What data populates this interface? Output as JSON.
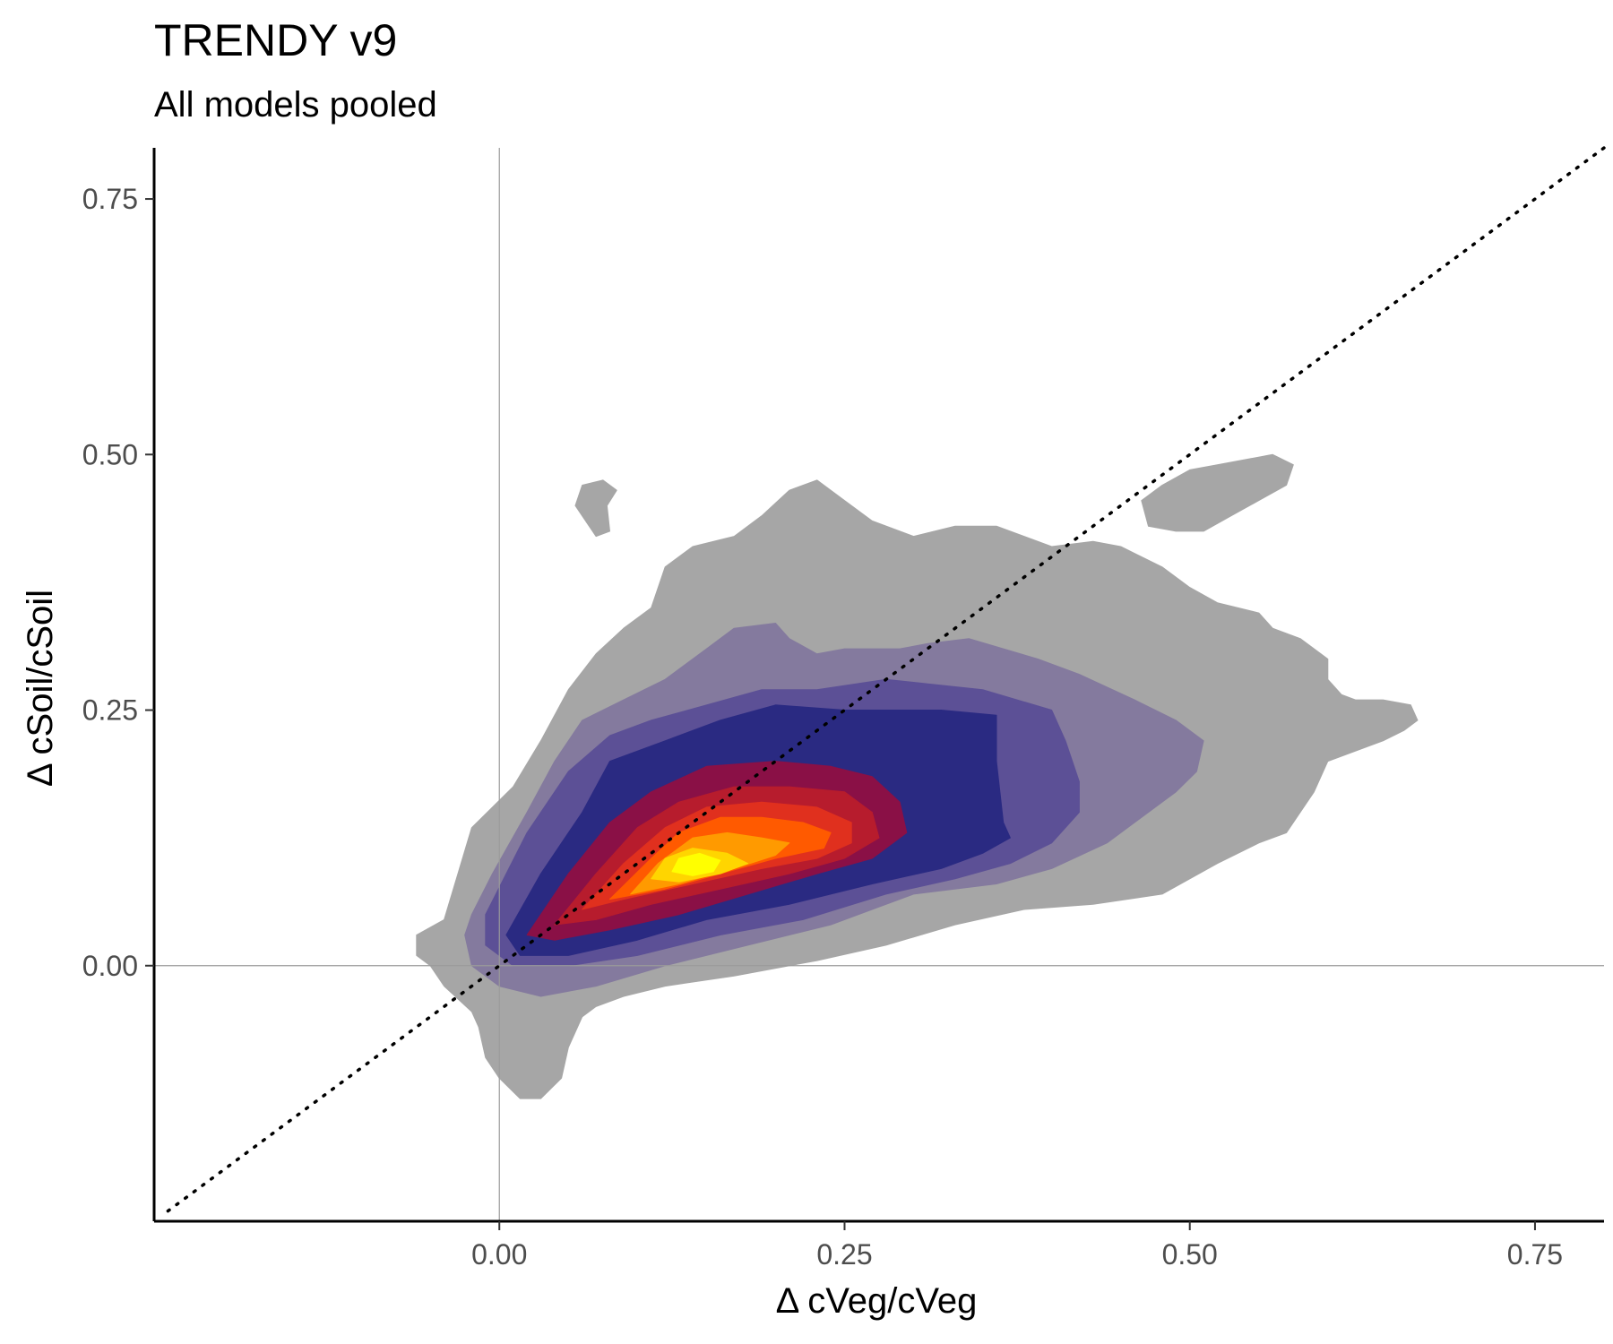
{
  "chart_data": {
    "type": "density-contour",
    "title": "TRENDY v9",
    "subtitle": "All models pooled",
    "xlabel": "Δ cVeg/cVeg",
    "ylabel": "Δ cSoil/cSoil",
    "xlim": [
      -0.25,
      0.8
    ],
    "ylim": [
      -0.25,
      0.8
    ],
    "x_ticks": [
      0.0,
      0.25,
      0.5,
      0.75
    ],
    "x_tick_labels": [
      "0.00",
      "0.25",
      "0.50",
      "0.75"
    ],
    "y_ticks": [
      0.0,
      0.25,
      0.5,
      0.75
    ],
    "y_tick_labels": [
      "0.00",
      "0.25",
      "0.50",
      "0.75"
    ],
    "reference_lines": {
      "vertical_x": 0,
      "horizontal_y": 0,
      "diagonal": "1:1",
      "diagonal_style": "dotted"
    },
    "grid": false,
    "legend": "none",
    "level_colors": [
      "#a6a6a6",
      "#847a9e",
      "#5c5096",
      "#2a2a82",
      "#8a1046",
      "#b71c2d",
      "#e0301e",
      "#ff5a00",
      "#ff9a00",
      "#ffd500",
      "#ffff00"
    ],
    "levels": [
      {
        "level": 1,
        "polygons": [
          [
            [
              -0.06,
              0.03
            ],
            [
              -0.04,
              0.045
            ],
            [
              -0.03,
              0.09
            ],
            [
              -0.02,
              0.135
            ],
            [
              0.01,
              0.175
            ],
            [
              0.03,
              0.22
            ],
            [
              0.05,
              0.27
            ],
            [
              0.07,
              0.305
            ],
            [
              0.09,
              0.33
            ],
            [
              0.11,
              0.35
            ],
            [
              0.12,
              0.39
            ],
            [
              0.14,
              0.41
            ],
            [
              0.17,
              0.42
            ],
            [
              0.19,
              0.44
            ],
            [
              0.21,
              0.465
            ],
            [
              0.23,
              0.475
            ],
            [
              0.25,
              0.455
            ],
            [
              0.27,
              0.435
            ],
            [
              0.3,
              0.42
            ],
            [
              0.33,
              0.43
            ],
            [
              0.36,
              0.43
            ],
            [
              0.4,
              0.41
            ],
            [
              0.43,
              0.415
            ],
            [
              0.45,
              0.41
            ],
            [
              0.48,
              0.39
            ],
            [
              0.5,
              0.37
            ],
            [
              0.52,
              0.355
            ],
            [
              0.55,
              0.345
            ],
            [
              0.56,
              0.33
            ],
            [
              0.58,
              0.32
            ],
            [
              0.6,
              0.3
            ],
            [
              0.6,
              0.28
            ],
            [
              0.61,
              0.265
            ],
            [
              0.62,
              0.26
            ],
            [
              0.64,
              0.26
            ],
            [
              0.66,
              0.255
            ],
            [
              0.665,
              0.24
            ],
            [
              0.655,
              0.23
            ],
            [
              0.64,
              0.22
            ],
            [
              0.6,
              0.2
            ],
            [
              0.59,
              0.17
            ],
            [
              0.57,
              0.13
            ],
            [
              0.55,
              0.12
            ],
            [
              0.52,
              0.1
            ],
            [
              0.5,
              0.085
            ],
            [
              0.48,
              0.07
            ],
            [
              0.43,
              0.06
            ],
            [
              0.38,
              0.055
            ],
            [
              0.33,
              0.04
            ],
            [
              0.28,
              0.02
            ],
            [
              0.23,
              0.005
            ],
            [
              0.17,
              -0.01
            ],
            [
              0.12,
              -0.02
            ],
            [
              0.09,
              -0.03
            ],
            [
              0.07,
              -0.04
            ],
            [
              0.06,
              -0.05
            ],
            [
              0.05,
              -0.08
            ],
            [
              0.045,
              -0.11
            ],
            [
              0.03,
              -0.13
            ],
            [
              0.015,
              -0.13
            ],
            [
              0.0,
              -0.11
            ],
            [
              -0.01,
              -0.09
            ],
            [
              -0.015,
              -0.06
            ],
            [
              -0.02,
              -0.045
            ],
            [
              -0.04,
              -0.02
            ],
            [
              -0.05,
              0.0
            ],
            [
              -0.06,
              0.01
            ]
          ],
          [
            [
              0.055,
              0.45
            ],
            [
              0.07,
              0.42
            ],
            [
              0.08,
              0.425
            ],
            [
              0.078,
              0.45
            ],
            [
              0.085,
              0.465
            ],
            [
              0.075,
              0.475
            ],
            [
              0.06,
              0.47
            ]
          ],
          [
            [
              0.465,
              0.455
            ],
            [
              0.48,
              0.47
            ],
            [
              0.5,
              0.485
            ],
            [
              0.52,
              0.49
            ],
            [
              0.54,
              0.495
            ],
            [
              0.56,
              0.5
            ],
            [
              0.575,
              0.49
            ],
            [
              0.57,
              0.47
            ],
            [
              0.55,
              0.455
            ],
            [
              0.53,
              0.44
            ],
            [
              0.51,
              0.425
            ],
            [
              0.49,
              0.425
            ],
            [
              0.47,
              0.43
            ]
          ]
        ]
      },
      {
        "level": 2,
        "polygons": [
          [
            [
              -0.02,
              0.05
            ],
            [
              -0.005,
              0.09
            ],
            [
              0.02,
              0.15
            ],
            [
              0.04,
              0.2
            ],
            [
              0.06,
              0.24
            ],
            [
              0.09,
              0.26
            ],
            [
              0.12,
              0.28
            ],
            [
              0.15,
              0.31
            ],
            [
              0.17,
              0.33
            ],
            [
              0.2,
              0.335
            ],
            [
              0.21,
              0.32
            ],
            [
              0.23,
              0.305
            ],
            [
              0.25,
              0.31
            ],
            [
              0.29,
              0.31
            ],
            [
              0.31,
              0.315
            ],
            [
              0.34,
              0.32
            ],
            [
              0.39,
              0.3
            ],
            [
              0.42,
              0.285
            ],
            [
              0.46,
              0.26
            ],
            [
              0.49,
              0.24
            ],
            [
              0.51,
              0.22
            ],
            [
              0.505,
              0.19
            ],
            [
              0.49,
              0.17
            ],
            [
              0.46,
              0.14
            ],
            [
              0.44,
              0.12
            ],
            [
              0.4,
              0.095
            ],
            [
              0.36,
              0.08
            ],
            [
              0.3,
              0.07
            ],
            [
              0.24,
              0.04
            ],
            [
              0.18,
              0.02
            ],
            [
              0.12,
              0.0
            ],
            [
              0.07,
              -0.02
            ],
            [
              0.03,
              -0.03
            ],
            [
              0.0,
              -0.02
            ],
            [
              -0.02,
              0.0
            ],
            [
              -0.025,
              0.03
            ]
          ]
        ]
      },
      {
        "level": 3,
        "polygons": [
          [
            [
              -0.01,
              0.05
            ],
            [
              0.02,
              0.13
            ],
            [
              0.05,
              0.19
            ],
            [
              0.08,
              0.225
            ],
            [
              0.11,
              0.24
            ],
            [
              0.15,
              0.255
            ],
            [
              0.19,
              0.27
            ],
            [
              0.23,
              0.27
            ],
            [
              0.28,
              0.28
            ],
            [
              0.35,
              0.27
            ],
            [
              0.4,
              0.25
            ],
            [
              0.41,
              0.22
            ],
            [
              0.42,
              0.18
            ],
            [
              0.42,
              0.15
            ],
            [
              0.4,
              0.12
            ],
            [
              0.37,
              0.1
            ],
            [
              0.33,
              0.085
            ],
            [
              0.28,
              0.07
            ],
            [
              0.22,
              0.045
            ],
            [
              0.16,
              0.03
            ],
            [
              0.1,
              0.01
            ],
            [
              0.05,
              0.0
            ],
            [
              0.01,
              0.0
            ],
            [
              -0.01,
              0.02
            ]
          ]
        ]
      },
      {
        "level": 4,
        "polygons": [
          [
            [
              0.005,
              0.03
            ],
            [
              0.03,
              0.09
            ],
            [
              0.06,
              0.15
            ],
            [
              0.08,
              0.2
            ],
            [
              0.12,
              0.22
            ],
            [
              0.16,
              0.24
            ],
            [
              0.2,
              0.255
            ],
            [
              0.25,
              0.25
            ],
            [
              0.32,
              0.25
            ],
            [
              0.36,
              0.245
            ],
            [
              0.36,
              0.2
            ],
            [
              0.365,
              0.14
            ],
            [
              0.37,
              0.125
            ],
            [
              0.35,
              0.11
            ],
            [
              0.32,
              0.095
            ],
            [
              0.27,
              0.08
            ],
            [
              0.21,
              0.06
            ],
            [
              0.15,
              0.045
            ],
            [
              0.1,
              0.025
            ],
            [
              0.05,
              0.01
            ],
            [
              0.015,
              0.01
            ]
          ]
        ]
      },
      {
        "level": 5,
        "polygons": [
          [
            [
              0.02,
              0.03
            ],
            [
              0.05,
              0.09
            ],
            [
              0.08,
              0.14
            ],
            [
              0.11,
              0.17
            ],
            [
              0.15,
              0.195
            ],
            [
              0.2,
              0.2
            ],
            [
              0.24,
              0.195
            ],
            [
              0.27,
              0.185
            ],
            [
              0.29,
              0.16
            ],
            [
              0.295,
              0.13
            ],
            [
              0.27,
              0.105
            ],
            [
              0.23,
              0.09
            ],
            [
              0.18,
              0.07
            ],
            [
              0.13,
              0.05
            ],
            [
              0.08,
              0.035
            ],
            [
              0.04,
              0.025
            ]
          ]
        ]
      },
      {
        "level": 6,
        "polygons": [
          [
            [
              0.04,
              0.04
            ],
            [
              0.07,
              0.09
            ],
            [
              0.1,
              0.135
            ],
            [
              0.13,
              0.16
            ],
            [
              0.17,
              0.175
            ],
            [
              0.21,
              0.175
            ],
            [
              0.25,
              0.17
            ],
            [
              0.27,
              0.15
            ],
            [
              0.275,
              0.125
            ],
            [
              0.25,
              0.105
            ],
            [
              0.21,
              0.09
            ],
            [
              0.16,
              0.075
            ],
            [
              0.11,
              0.06
            ],
            [
              0.07,
              0.045
            ]
          ]
        ]
      },
      {
        "level": 7,
        "polygons": [
          [
            [
              0.06,
              0.055
            ],
            [
              0.09,
              0.1
            ],
            [
              0.12,
              0.135
            ],
            [
              0.15,
              0.155
            ],
            [
              0.19,
              0.16
            ],
            [
              0.23,
              0.155
            ],
            [
              0.255,
              0.14
            ],
            [
              0.255,
              0.12
            ],
            [
              0.23,
              0.105
            ],
            [
              0.19,
              0.095
            ],
            [
              0.14,
              0.08
            ],
            [
              0.09,
              0.065
            ]
          ]
        ]
      },
      {
        "level": 8,
        "polygons": [
          [
            [
              0.08,
              0.065
            ],
            [
              0.11,
              0.105
            ],
            [
              0.13,
              0.13
            ],
            [
              0.16,
              0.145
            ],
            [
              0.19,
              0.145
            ],
            [
              0.22,
              0.14
            ],
            [
              0.24,
              0.13
            ],
            [
              0.235,
              0.115
            ],
            [
              0.2,
              0.105
            ],
            [
              0.16,
              0.09
            ],
            [
              0.12,
              0.075
            ]
          ]
        ]
      },
      {
        "level": 9,
        "polygons": [
          [
            [
              0.095,
              0.07
            ],
            [
              0.115,
              0.1
            ],
            [
              0.14,
              0.125
            ],
            [
              0.165,
              0.13
            ],
            [
              0.19,
              0.125
            ],
            [
              0.21,
              0.12
            ],
            [
              0.2,
              0.108
            ],
            [
              0.17,
              0.095
            ],
            [
              0.13,
              0.08
            ]
          ]
        ]
      },
      {
        "level": 10,
        "polygons": [
          [
            [
              0.11,
              0.085
            ],
            [
              0.12,
              0.105
            ],
            [
              0.14,
              0.115
            ],
            [
              0.165,
              0.11
            ],
            [
              0.18,
              0.1
            ],
            [
              0.16,
              0.09
            ],
            [
              0.13,
              0.082
            ]
          ]
        ]
      },
      {
        "level": 11,
        "polygons": [
          [
            [
              0.125,
              0.092
            ],
            [
              0.13,
              0.105
            ],
            [
              0.145,
              0.11
            ],
            [
              0.16,
              0.103
            ],
            [
              0.155,
              0.092
            ],
            [
              0.14,
              0.088
            ]
          ]
        ]
      }
    ]
  }
}
